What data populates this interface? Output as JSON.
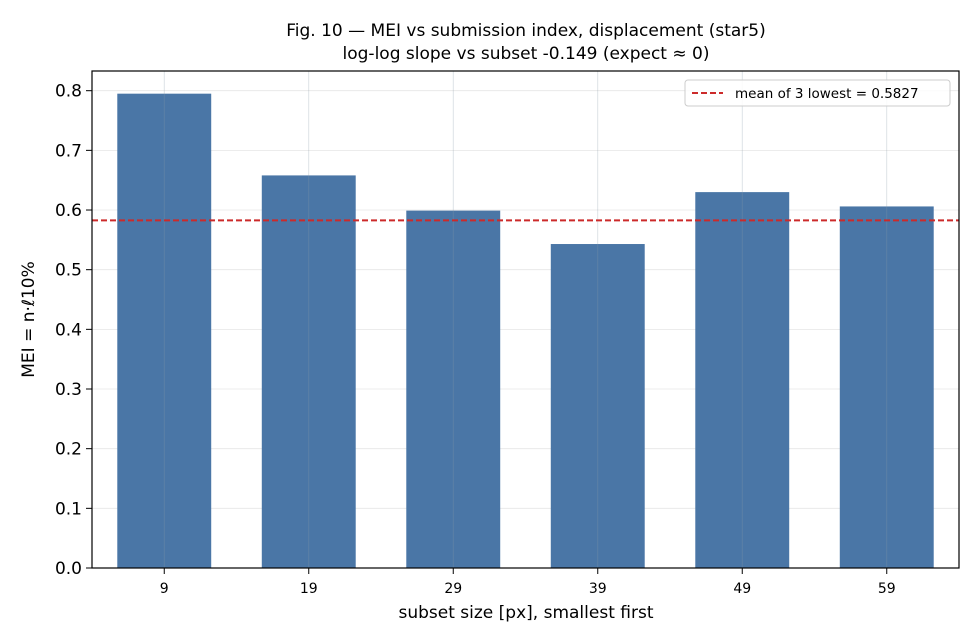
{
  "chart_data": {
    "type": "bar",
    "title": "Fig. 10 — MEI vs submission index, displacement (star5)",
    "subtitle": "log-log slope vs subset -0.149 (expect ≈ 0)",
    "xlabel": "subset size [px], smallest first",
    "ylabel": "MEI = n·ℓ10%",
    "categories": [
      "9",
      "19",
      "29",
      "39",
      "49",
      "59"
    ],
    "values": [
      0.795,
      0.658,
      0.599,
      0.543,
      0.63,
      0.606
    ],
    "ylim": [
      0,
      0.833
    ],
    "yticks": [
      0.0,
      0.1,
      0.2,
      0.3,
      0.4,
      0.5,
      0.6,
      0.7,
      0.8
    ],
    "grid": true,
    "bar_color": "#4a76a6",
    "reference_line": {
      "value": 0.5827,
      "label": "mean of 3 lowest = 0.5827",
      "color": "#cc2a2a"
    },
    "legend_position": "top-right"
  }
}
